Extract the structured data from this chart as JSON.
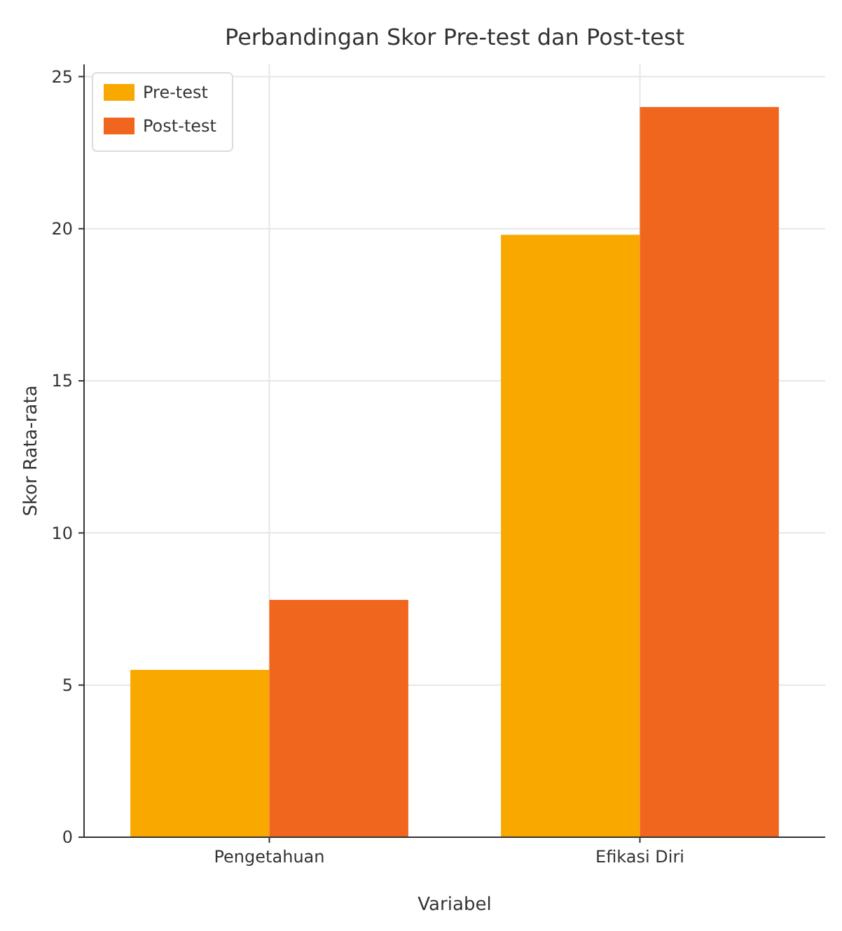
{
  "chart_data": {
    "type": "bar",
    "title": "Perbandingan Skor Pre-test dan Post-test",
    "xlabel": "Variabel",
    "ylabel": "Skor Rata-rata",
    "categories": [
      "Pengetahuan",
      "Efikasi Diri"
    ],
    "series": [
      {
        "name": "Pre-test",
        "color": "#f9a800",
        "values": [
          5.5,
          19.8
        ]
      },
      {
        "name": "Post-test",
        "color": "#f0661e",
        "values": [
          7.8,
          24.0
        ]
      }
    ],
    "ylim": [
      0,
      25.4
    ],
    "yticks": [
      0,
      5,
      10,
      15,
      20,
      25
    ],
    "grid": true,
    "legend": "top left"
  }
}
